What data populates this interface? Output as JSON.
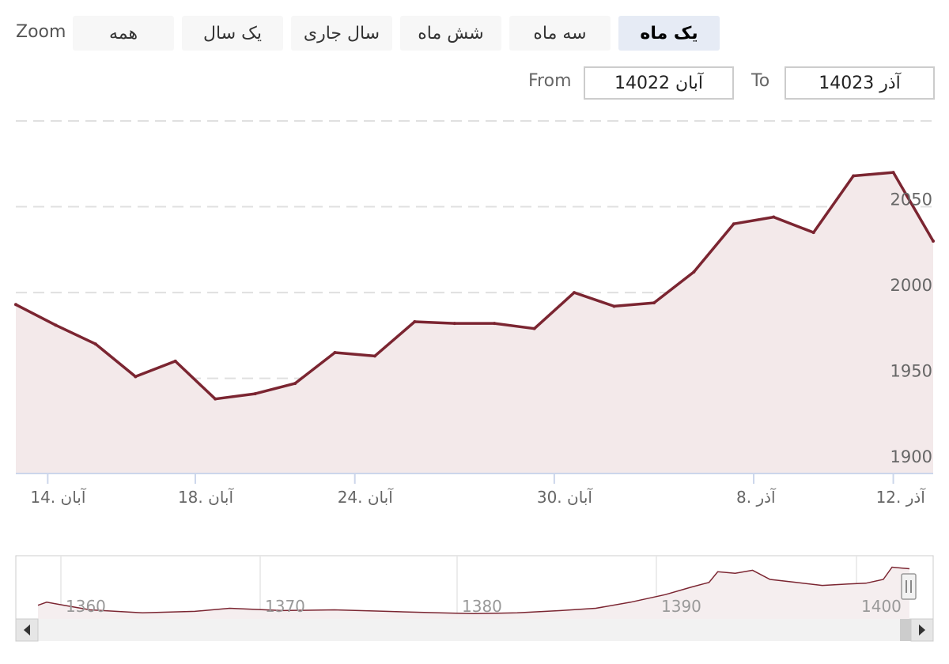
{
  "zoom": {
    "label": "Zoom",
    "buttons": [
      {
        "label": "همه",
        "active": false
      },
      {
        "label": "یک سال",
        "active": false
      },
      {
        "label": "سال جاری",
        "active": false
      },
      {
        "label": "شش ماه",
        "active": false
      },
      {
        "label": "سه ماه",
        "active": false
      },
      {
        "label": "یک ماه",
        "active": true
      }
    ]
  },
  "range": {
    "from_label": "From",
    "from_value": "14022 آبان",
    "to_label": "To",
    "to_value": "14023 آذر"
  },
  "chart_data": {
    "type": "area",
    "title": "",
    "xlabel": "",
    "ylabel": "",
    "ylim": [
      1895,
      2100
    ],
    "y_ticks": [
      1900,
      1950,
      2000,
      2050
    ],
    "x_ticks": [
      "14. آبان",
      "18. آبان",
      "24. آبان",
      "30. آبان",
      "8. آذر",
      "12. آذر"
    ],
    "series": [
      {
        "color": "#7b2531",
        "fill": "#f3e9ea",
        "values": [
          1993,
          1981,
          1970,
          1951,
          1960,
          1938,
          1941,
          1947,
          1965,
          1963,
          1983,
          1982,
          1982,
          1979,
          2000,
          1992,
          1994,
          2012,
          2040,
          2044,
          2035,
          2068,
          2070,
          2030
        ]
      }
    ],
    "navigator": {
      "x_ticks": [
        "1360",
        "1370",
        "1380",
        "1390",
        "1400"
      ]
    }
  }
}
